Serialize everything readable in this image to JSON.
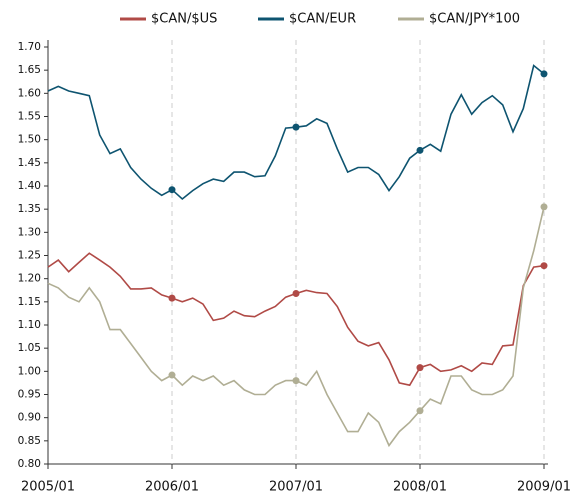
{
  "chart_data": {
    "type": "line",
    "x": [
      "2005/01",
      "2005/02",
      "2005/03",
      "2005/04",
      "2005/05",
      "2005/06",
      "2005/07",
      "2005/08",
      "2005/09",
      "2005/10",
      "2005/11",
      "2005/12",
      "2006/01",
      "2006/02",
      "2006/03",
      "2006/04",
      "2006/05",
      "2006/06",
      "2006/07",
      "2006/08",
      "2006/09",
      "2006/10",
      "2006/11",
      "2006/12",
      "2007/01",
      "2007/02",
      "2007/03",
      "2007/04",
      "2007/05",
      "2007/06",
      "2007/07",
      "2007/08",
      "2007/09",
      "2007/10",
      "2007/11",
      "2007/12",
      "2008/01",
      "2008/02",
      "2008/03",
      "2008/04",
      "2008/05",
      "2008/06",
      "2008/07",
      "2008/08",
      "2008/09",
      "2008/10",
      "2008/11",
      "2008/12",
      "2009/01"
    ],
    "xticks": [
      "2005/01",
      "2006/01",
      "2007/01",
      "2008/01",
      "2009/01"
    ],
    "series": [
      {
        "name": "$CAN/$US",
        "color": "#b04a46",
        "values": [
          1.225,
          1.24,
          1.215,
          1.235,
          1.255,
          1.24,
          1.225,
          1.205,
          1.178,
          1.178,
          1.18,
          1.165,
          1.158,
          1.15,
          1.158,
          1.145,
          1.11,
          1.115,
          1.13,
          1.12,
          1.118,
          1.13,
          1.14,
          1.16,
          1.168,
          1.175,
          1.17,
          1.168,
          1.14,
          1.095,
          1.065,
          1.055,
          1.062,
          1.025,
          0.975,
          0.97,
          1.008,
          1.015,
          1.0,
          1.003,
          1.012,
          1.0,
          1.018,
          1.015,
          1.055,
          1.057,
          1.185,
          1.225,
          1.228
        ]
      },
      {
        "name": "$CAN/EUR",
        "color": "#0e5470",
        "values": [
          1.605,
          1.615,
          1.605,
          1.6,
          1.595,
          1.51,
          1.47,
          1.48,
          1.44,
          1.415,
          1.395,
          1.38,
          1.392,
          1.372,
          1.39,
          1.405,
          1.415,
          1.41,
          1.43,
          1.43,
          1.42,
          1.422,
          1.465,
          1.525,
          1.527,
          1.53,
          1.545,
          1.535,
          1.48,
          1.43,
          1.44,
          1.44,
          1.425,
          1.39,
          1.42,
          1.46,
          1.477,
          1.49,
          1.475,
          1.555,
          1.597,
          1.555,
          1.58,
          1.595,
          1.575,
          1.517,
          1.567,
          1.66,
          1.642
        ]
      },
      {
        "name": "$CAN/JPY*100",
        "color": "#b0ae94",
        "values": [
          1.19,
          1.18,
          1.16,
          1.15,
          1.18,
          1.15,
          1.09,
          1.09,
          1.06,
          1.03,
          1.0,
          0.98,
          0.992,
          0.97,
          0.99,
          0.98,
          0.99,
          0.97,
          0.98,
          0.96,
          0.95,
          0.95,
          0.97,
          0.98,
          0.98,
          0.97,
          1.0,
          0.95,
          0.91,
          0.87,
          0.87,
          0.91,
          0.89,
          0.84,
          0.87,
          0.89,
          0.915,
          0.94,
          0.93,
          0.99,
          0.99,
          0.96,
          0.95,
          0.95,
          0.96,
          0.99,
          1.18,
          1.26,
          1.355
        ]
      }
    ],
    "ylim": [
      0.8,
      1.7
    ],
    "yticks": [
      {
        "value": 0.8,
        "label": "0.80"
      },
      {
        "value": 0.85,
        "label": "0.85"
      },
      {
        "value": 0.9,
        "label": "0.90"
      },
      {
        "value": 0.95,
        "label": "0.95"
      },
      {
        "value": 1.0,
        "label": "1.00"
      },
      {
        "value": 1.05,
        "label": "1.05"
      },
      {
        "value": 1.1,
        "label": "1.10"
      },
      {
        "value": 1.15,
        "label": "1.15"
      },
      {
        "value": 1.2,
        "label": "1.20"
      },
      {
        "value": 1.25,
        "label": "1.25"
      },
      {
        "value": 1.3,
        "label": "1.30"
      },
      {
        "value": 1.35,
        "label": "1.35"
      },
      {
        "value": 1.4,
        "label": "1.40"
      },
      {
        "value": 1.45,
        "label": "1.45"
      },
      {
        "value": 1.5,
        "label": "1.50"
      },
      {
        "value": 1.55,
        "label": "1.55"
      },
      {
        "value": 1.6,
        "label": "1.60"
      },
      {
        "value": 1.65,
        "label": "1.65"
      },
      {
        "value": 1.7,
        "label": "1.70"
      }
    ],
    "legend": "top"
  }
}
